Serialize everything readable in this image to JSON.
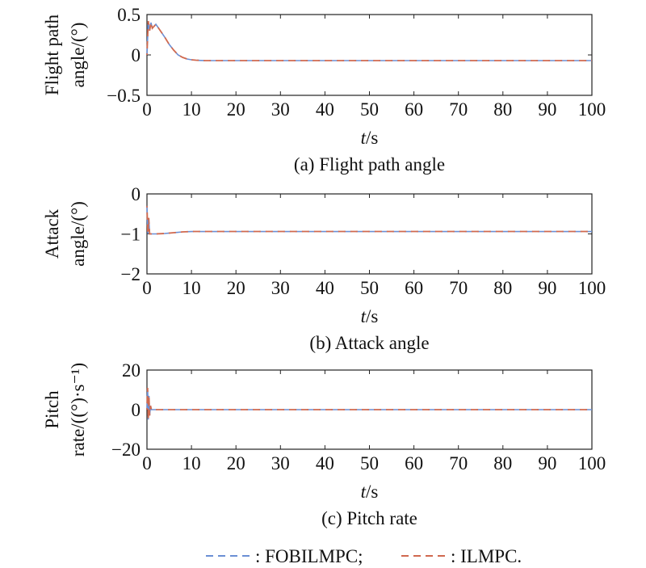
{
  "legend": {
    "fobilmpc": {
      "label": ": FOBILMPC;",
      "color": "#6b8fd4"
    },
    "ilmpc": {
      "label": ": ILMPC.",
      "color": "#d0694f"
    }
  },
  "chart_data": [
    {
      "type": "line",
      "caption": "(a) Flight path angle",
      "ylabel": [
        "Flight path",
        "angle/(°)"
      ],
      "xlabel_italic": "t",
      "xlabel_unit": "/s",
      "xlim": [
        0,
        100
      ],
      "ylim": [
        -0.5,
        0.5
      ],
      "xticks": [
        "0",
        "10",
        "20",
        "30",
        "40",
        "50",
        "60",
        "70",
        "80",
        "90",
        "100"
      ],
      "yticks": [
        "0.5",
        "0",
        "−0.5"
      ],
      "ytick_values": [
        0.5,
        0,
        -0.5
      ],
      "series": [
        {
          "name": "FOBILMPC",
          "x": [
            0,
            0.3,
            0.6,
            0.9,
            1.2,
            2,
            3,
            4,
            5,
            6,
            7,
            8,
            9,
            10,
            11,
            12,
            13,
            15,
            18,
            20,
            25,
            30,
            40,
            50,
            60,
            70,
            80,
            90,
            100
          ],
          "y": [
            0,
            0.42,
            0.3,
            0.4,
            0.33,
            0.38,
            0.3,
            0.22,
            0.13,
            0.06,
            0.0,
            -0.03,
            -0.05,
            -0.06,
            -0.065,
            -0.068,
            -0.07,
            -0.07,
            -0.07,
            -0.07,
            -0.07,
            -0.07,
            -0.07,
            -0.07,
            -0.07,
            -0.07,
            -0.07,
            -0.07,
            -0.07
          ]
        },
        {
          "name": "ILMPC",
          "x": [
            0,
            0.3,
            0.6,
            0.9,
            1.2,
            2,
            3,
            4,
            5,
            6,
            7,
            8,
            9,
            10,
            11,
            12,
            13,
            15,
            18,
            20,
            25,
            30,
            40,
            50,
            60,
            70,
            80,
            90,
            100
          ],
          "y": [
            0,
            0.42,
            0.3,
            0.4,
            0.33,
            0.38,
            0.3,
            0.22,
            0.13,
            0.06,
            0.0,
            -0.03,
            -0.05,
            -0.06,
            -0.065,
            -0.068,
            -0.07,
            -0.07,
            -0.07,
            -0.07,
            -0.07,
            -0.07,
            -0.07,
            -0.07,
            -0.07,
            -0.07,
            -0.07,
            -0.07,
            -0.07
          ]
        }
      ]
    },
    {
      "type": "line",
      "caption": "(b) Attack angle",
      "ylabel": [
        "Attack",
        "angle/(°)"
      ],
      "xlabel_italic": "t",
      "xlabel_unit": "/s",
      "xlim": [
        0,
        100
      ],
      "ylim": [
        -2,
        0
      ],
      "xticks": [
        "0",
        "10",
        "20",
        "30",
        "40",
        "50",
        "60",
        "70",
        "80",
        "90",
        "100"
      ],
      "yticks": [
        "0",
        "−1",
        "−2"
      ],
      "ytick_values": [
        0,
        -1,
        -2
      ],
      "series": [
        {
          "name": "FOBILMPC",
          "x": [
            0,
            0.2,
            0.4,
            0.6,
            1,
            2,
            4,
            6,
            8,
            10,
            15,
            20,
            30,
            40,
            50,
            60,
            70,
            80,
            90,
            100
          ],
          "y": [
            -0.3,
            -1.0,
            -0.6,
            -1.0,
            -1.0,
            -1.0,
            -0.99,
            -0.97,
            -0.95,
            -0.94,
            -0.94,
            -0.94,
            -0.94,
            -0.94,
            -0.94,
            -0.94,
            -0.94,
            -0.94,
            -0.94,
            -0.94
          ]
        },
        {
          "name": "ILMPC",
          "x": [
            0,
            0.2,
            0.4,
            0.6,
            1,
            2,
            4,
            6,
            8,
            10,
            15,
            20,
            30,
            40,
            50,
            60,
            70,
            80,
            90,
            100
          ],
          "y": [
            -0.3,
            -1.0,
            -0.6,
            -1.0,
            -1.0,
            -1.0,
            -0.99,
            -0.97,
            -0.95,
            -0.94,
            -0.94,
            -0.94,
            -0.94,
            -0.94,
            -0.94,
            -0.94,
            -0.94,
            -0.94,
            -0.94,
            -0.94
          ]
        }
      ]
    },
    {
      "type": "line",
      "caption": "(c) Pitch rate",
      "ylabel": [
        "Pitch",
        "rate/((°)·s⁻¹)"
      ],
      "xlabel_italic": "t",
      "xlabel_unit": "/s",
      "xlim": [
        0,
        100
      ],
      "ylim": [
        -20,
        20
      ],
      "xticks": [
        "0",
        "10",
        "20",
        "30",
        "40",
        "50",
        "60",
        "70",
        "80",
        "90",
        "100"
      ],
      "yticks": [
        "20",
        "0",
        "−20"
      ],
      "ytick_values": [
        20,
        0,
        -20
      ],
      "series": [
        {
          "name": "FOBILMPC",
          "x": [
            0,
            0.15,
            0.3,
            0.45,
            0.6,
            0.8,
            1,
            2,
            5,
            10,
            30,
            50,
            70,
            100
          ],
          "y": [
            0,
            11,
            -5,
            7,
            -3,
            2,
            0,
            0,
            0,
            0,
            0,
            0,
            0,
            0
          ]
        },
        {
          "name": "ILMPC",
          "x": [
            0,
            0.15,
            0.3,
            0.45,
            0.6,
            0.8,
            1,
            2,
            5,
            10,
            30,
            50,
            70,
            100
          ],
          "y": [
            0,
            11,
            -5,
            7,
            -3,
            2,
            0,
            0,
            0,
            0,
            0,
            0,
            0,
            0
          ]
        }
      ]
    }
  ]
}
